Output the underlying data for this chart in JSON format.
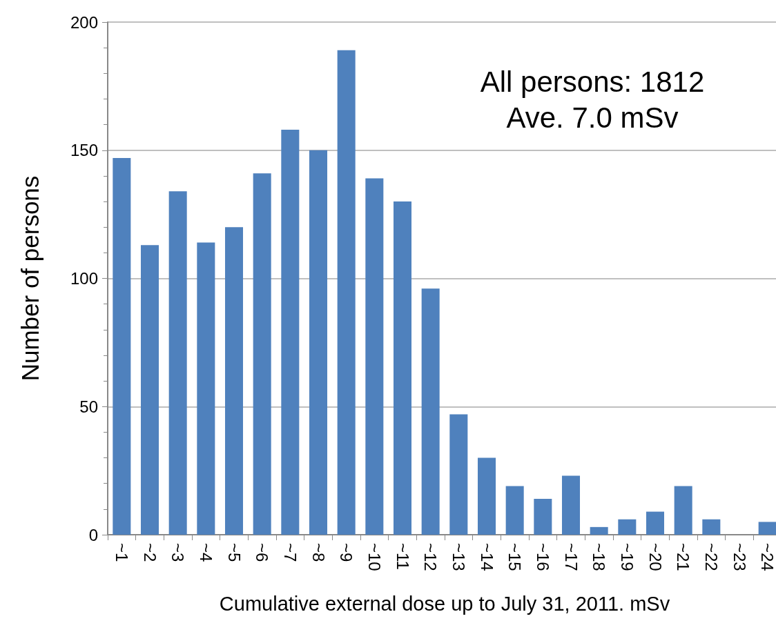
{
  "chart_data": {
    "type": "bar",
    "xlabel": "Cumulative external dose up to July 31, 2011. mSv",
    "ylabel": "Number of persons",
    "categories": [
      "~1",
      "~2",
      "~3",
      "~4",
      "~5",
      "~6",
      "~7",
      "~8",
      "~9",
      "~10",
      "~11",
      "~12",
      "~13",
      "~14",
      "~15",
      "~16",
      "~17",
      "~18",
      "~19",
      "~20",
      "~21",
      "~22",
      "~23",
      "~24"
    ],
    "values": [
      147,
      113,
      134,
      114,
      120,
      141,
      158,
      150,
      189,
      139,
      130,
      96,
      47,
      30,
      19,
      14,
      23,
      3,
      6,
      9,
      19,
      6,
      0,
      5
    ],
    "color": "#4f81bd",
    "ylim": [
      0,
      200
    ],
    "yticks": [
      0,
      50,
      100,
      150,
      200
    ],
    "grid": "y",
    "annotations": [
      "All persons: 1812",
      "Ave. 7.0 mSv"
    ]
  }
}
